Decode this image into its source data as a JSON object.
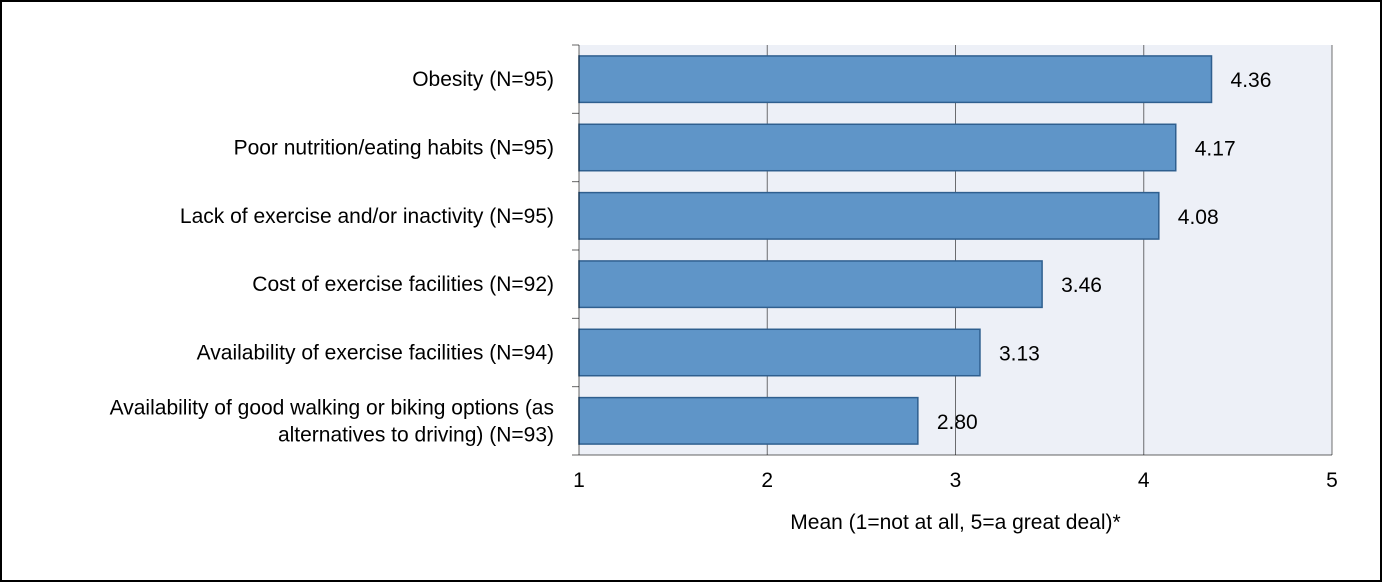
{
  "chart_data": {
    "type": "bar",
    "orientation": "horizontal",
    "categories": [
      [
        "Obesity (N=95)"
      ],
      [
        "Poor nutrition/eating habits (N=95)"
      ],
      [
        "Lack of exercise and/or inactivity (N=95)"
      ],
      [
        "Cost of exercise facilities (N=92)"
      ],
      [
        "Availability of exercise facilities (N=94)"
      ],
      [
        "Availability of good walking or biking options (as",
        "alternatives to driving) (N=93)"
      ]
    ],
    "values": [
      4.36,
      4.17,
      4.08,
      3.46,
      3.13,
      2.8
    ],
    "value_labels": [
      "4.36",
      "4.17",
      "4.08",
      "3.46",
      "3.13",
      "2.80"
    ],
    "xlabel": "Mean (1=not at all, 5=a great deal)*",
    "xlim": [
      1,
      5
    ],
    "xticks": [
      "1",
      "2",
      "3",
      "4",
      "5"
    ],
    "grid": "vertical",
    "legend": "none",
    "colors": {
      "bar_fill": "#5f95c8",
      "bar_stroke": "#2f5f8f",
      "plot_background": "#edf0f7",
      "gridline": "#000000"
    }
  }
}
